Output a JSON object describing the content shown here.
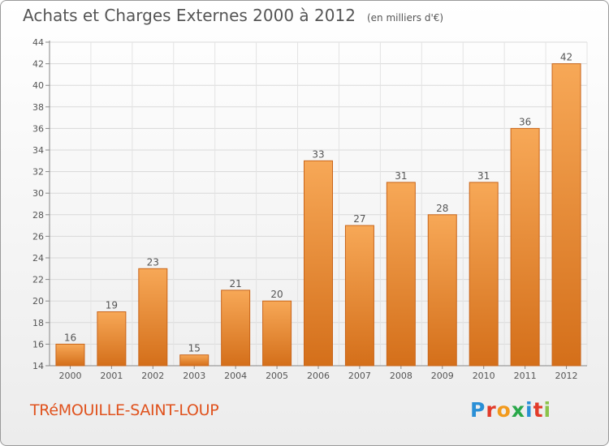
{
  "title": "Achats et Charges Externes 2000 à 2012",
  "unit_label": "(en milliers d'€)",
  "commune": "TRéMOUILLE-SAINT-LOUP",
  "logo": {
    "text": "Proxiti",
    "letters": [
      "P",
      "r",
      "o",
      "x",
      "i",
      "t",
      "i"
    ],
    "colors": [
      "#2a8fd6",
      "#e23b2a",
      "#f29a1d",
      "#2aa84a",
      "#2a8fd6",
      "#e23b2a",
      "#8bc34a"
    ]
  },
  "colors": {
    "bar_top": "#f7a857",
    "bar_bottom": "#d46f1a",
    "bar_stroke": "#c9651a",
    "text": "#555555",
    "commune": "#e0521d"
  },
  "chart_data": {
    "type": "bar",
    "categories": [
      "2000",
      "2001",
      "2002",
      "2003",
      "2004",
      "2005",
      "2006",
      "2007",
      "2008",
      "2009",
      "2010",
      "2011",
      "2012"
    ],
    "values": [
      16,
      19,
      23,
      15,
      21,
      20,
      33,
      27,
      31,
      28,
      31,
      36,
      42
    ],
    "ylim": [
      14,
      44
    ],
    "yticks": [
      14,
      16,
      18,
      20,
      22,
      24,
      26,
      28,
      30,
      32,
      34,
      36,
      38,
      40,
      42,
      44
    ],
    "grid": true,
    "xlabel": "",
    "ylabel": ""
  }
}
